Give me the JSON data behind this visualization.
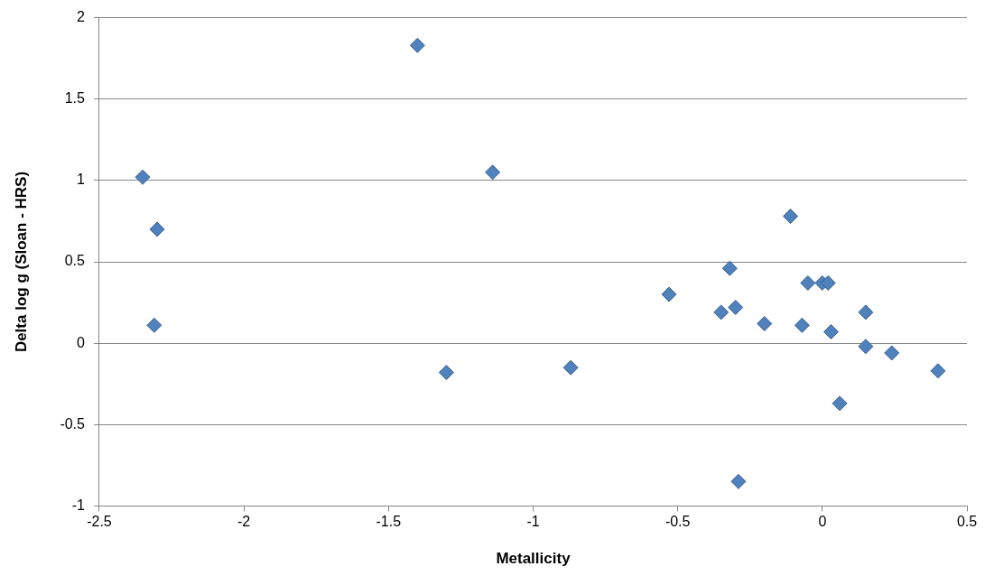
{
  "chart_data": {
    "type": "scatter",
    "xlabel": "Metallicity",
    "ylabel": "Delta log g (Sloan - HRS)",
    "x": [
      -2.35,
      -2.3,
      -2.31,
      -1.4,
      -1.14,
      -1.3,
      -0.87,
      -0.53,
      -0.35,
      -0.32,
      -0.3,
      -0.29,
      -0.2,
      -0.11,
      -0.07,
      -0.05,
      0.0,
      0.02,
      0.03,
      0.06,
      0.15,
      0.15,
      0.24,
      0.4
    ],
    "series": [
      {
        "color": "#4f81bd",
        "values": [
          1.02,
          0.7,
          0.11,
          1.83,
          1.05,
          -0.18,
          -0.15,
          0.3,
          0.19,
          0.46,
          0.22,
          -0.85,
          0.12,
          0.78,
          0.11,
          0.37,
          0.37,
          0.37,
          0.07,
          -0.37,
          0.19,
          -0.02,
          -0.06,
          -0.17
        ]
      }
    ],
    "xlim": [
      -2.5,
      0.5
    ],
    "xticks": [
      -2.5,
      -2,
      -1.5,
      -1,
      -0.5,
      0,
      0.5
    ],
    "ylim": [
      -1,
      2
    ],
    "yticks": [
      -1,
      -0.5,
      0,
      0.5,
      1,
      1.5,
      2
    ],
    "grid": "y",
    "legend": false,
    "marker": "diamond"
  }
}
